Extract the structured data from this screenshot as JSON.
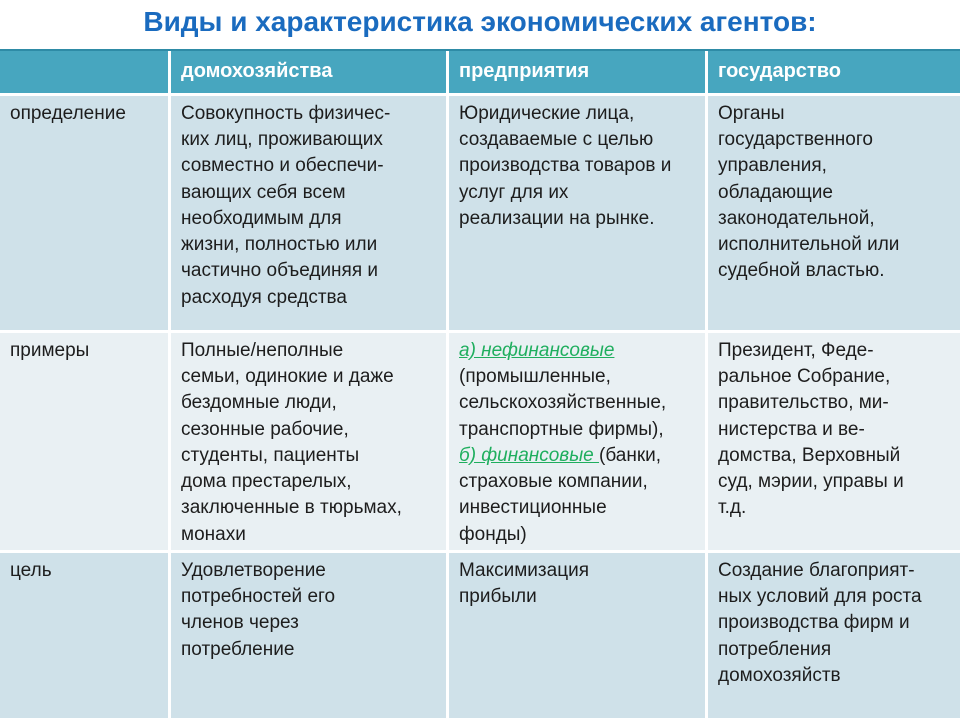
{
  "title": "Виды и характеристика экономических агентов:",
  "colors": {
    "title_blue": "#1a6bbf",
    "header_bg": "#47a6bf",
    "header_text": "#ffffff",
    "row_band_dark": "#cfe1e9",
    "row_band_light": "#e9f0f3",
    "green_accent": "#1fae5e",
    "body_text": "#1d1d1d"
  },
  "table": {
    "columns": [
      "",
      "домохозяйства",
      "предприятия",
      "государство"
    ],
    "rows": [
      {
        "label": "определение",
        "households": "Совокупность физичес-\nких лиц, проживающих\nсовместно и обеспечи-\nвающих себя всем\nнеобходимым для\nжизни, полностью или\nчастично объединяя и\nрасходуя средства",
        "enterprises": "Юридические лица,\nсоздаваемые с целью\nпроизводства товаров и\nуслуг для их\nреализации на рынке.",
        "state": "Органы\nгосударственного\nуправления,\nобладающие\nзаконодательной,\nисполнительной или\nсудебной властью."
      },
      {
        "label": "примеры",
        "households": "Полные/неполные\nсемьи, одинокие и даже\nбездомные люди,\nсезонные рабочие,\nстуденты, пациенты\nдома престарелых,\nзаключенные в тюрьмах,\nмонахи",
        "enterprises_segments": [
          {
            "text": "а) нефинансовые",
            "style": "green",
            "break_after": true
          },
          {
            "text": "(промышленные,\nсельскохозяйственные,\nтранспортные фирмы),",
            "style": "normal",
            "break_after": true
          },
          {
            "text": "б) финансовые ",
            "style": "green",
            "break_after": false
          },
          {
            "text": "(банки,\nстраховые компании,\nинвестиционные\nфонды)",
            "style": "normal",
            "break_after": false
          }
        ],
        "state": "Президент, Феде-\nральное Собрание,\nправительство, ми-\nнистерства и ве-\nдомства, Верховный\nсуд, мэрии, управы и\nт.д."
      },
      {
        "label": "цель",
        "households": "Удовлетворение\nпотребностей его\nчленов через\nпотребление",
        "enterprises": "Максимизация\nприбыли",
        "state": "Создание благоприят-\nных условий для роста\nпроизводства фирм и\nпотребления\nдомохозяйств"
      }
    ]
  }
}
